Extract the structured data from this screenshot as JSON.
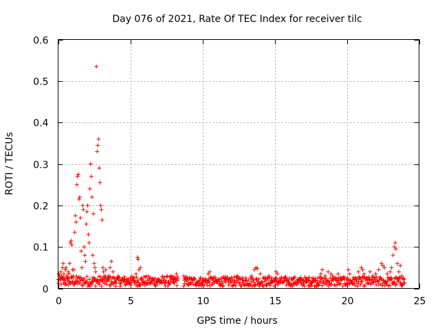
{
  "chart_data": {
    "type": "scatter",
    "title": "Day 076 of 2021, Rate Of TEC Index for receiver tilc",
    "xlabel": "GPS time / hours",
    "ylabel": "ROTI / TECUs",
    "xlim": [
      0,
      25
    ],
    "ylim": [
      0,
      0.6
    ],
    "xticks": [
      "0",
      "5",
      "10",
      "15",
      "20",
      "25"
    ],
    "yticks": [
      "0",
      "0.1",
      "0.2",
      "0.3",
      "0.4",
      "0.5",
      "0.6"
    ],
    "grid": true,
    "marker": "+",
    "color": "#ff0000",
    "series": [
      {
        "name": "",
        "points": [
          [
            0.05,
            0.035
          ],
          [
            0.1,
            0.03
          ],
          [
            0.15,
            0.025
          ],
          [
            0.2,
            0.04
          ],
          [
            0.25,
            0.03
          ],
          [
            0.3,
            0.05
          ],
          [
            0.35,
            0.06
          ],
          [
            0.4,
            0.035
          ],
          [
            0.45,
            0.02
          ],
          [
            0.5,
            0.045
          ],
          [
            0.55,
            0.05
          ],
          [
            0.6,
            0.03
          ],
          [
            0.65,
            0.02
          ],
          [
            0.7,
            0.04
          ],
          [
            0.75,
            0.035
          ],
          [
            0.8,
            0.06
          ],
          [
            0.85,
            0.11
          ],
          [
            0.9,
            0.115
          ],
          [
            0.95,
            0.105
          ],
          [
            1.0,
            0.045
          ],
          [
            1.05,
            0.03
          ],
          [
            1.1,
            0.045
          ],
          [
            1.15,
            0.135
          ],
          [
            1.2,
            0.175
          ],
          [
            1.25,
            0.16
          ],
          [
            1.3,
            0.25
          ],
          [
            1.35,
            0.27
          ],
          [
            1.4,
            0.275
          ],
          [
            1.45,
            0.215
          ],
          [
            1.5,
            0.22
          ],
          [
            1.55,
            0.17
          ],
          [
            1.6,
            0.09
          ],
          [
            1.65,
            0.05
          ],
          [
            1.7,
            0.2
          ],
          [
            1.75,
            0.19
          ],
          [
            1.8,
            0.1
          ],
          [
            1.85,
            0.08
          ],
          [
            1.9,
            0.065
          ],
          [
            1.95,
            0.155
          ],
          [
            2.0,
            0.185
          ],
          [
            2.05,
            0.2
          ],
          [
            2.1,
            0.13
          ],
          [
            2.15,
            0.11
          ],
          [
            2.2,
            0.24
          ],
          [
            2.25,
            0.3
          ],
          [
            2.3,
            0.27
          ],
          [
            2.35,
            0.22
          ],
          [
            2.4,
            0.08
          ],
          [
            2.45,
            0.18
          ],
          [
            2.5,
            0.06
          ],
          [
            2.55,
            0.05
          ],
          [
            2.6,
            0.04
          ],
          [
            2.65,
            0.535
          ],
          [
            2.7,
            0.33
          ],
          [
            2.75,
            0.345
          ],
          [
            2.8,
            0.36
          ],
          [
            2.85,
            0.29
          ],
          [
            2.9,
            0.255
          ],
          [
            2.95,
            0.2
          ],
          [
            3.0,
            0.19
          ],
          [
            3.05,
            0.165
          ],
          [
            3.1,
            0.05
          ],
          [
            3.15,
            0.04
          ],
          [
            3.2,
            0.03
          ],
          [
            3.3,
            0.045
          ],
          [
            3.4,
            0.025
          ],
          [
            3.5,
            0.03
          ],
          [
            3.6,
            0.05
          ],
          [
            3.7,
            0.065
          ],
          [
            3.8,
            0.04
          ],
          [
            3.9,
            0.025
          ],
          [
            4.0,
            0.02
          ],
          [
            4.2,
            0.025
          ],
          [
            4.4,
            0.02
          ],
          [
            4.6,
            0.015
          ],
          [
            4.8,
            0.02
          ],
          [
            5.0,
            0.025
          ],
          [
            5.2,
            0.02
          ],
          [
            5.4,
            0.035
          ],
          [
            5.5,
            0.075
          ],
          [
            5.55,
            0.07
          ],
          [
            5.6,
            0.045
          ],
          [
            5.7,
            0.05
          ],
          [
            5.8,
            0.02
          ],
          [
            6.0,
            0.015
          ],
          [
            6.2,
            0.02
          ],
          [
            6.4,
            0.015
          ],
          [
            6.6,
            0.02
          ],
          [
            6.8,
            0.015
          ],
          [
            7.0,
            0.02
          ],
          [
            7.2,
            0.015
          ],
          [
            7.4,
            0.02
          ],
          [
            7.6,
            0.015
          ],
          [
            7.8,
            0.02
          ],
          [
            8.0,
            0.015
          ],
          [
            8.1,
            0.025
          ],
          [
            8.2,
            0.035
          ],
          [
            8.3,
            0.02
          ],
          [
            8.7,
            0.03
          ],
          [
            8.8,
            0.025
          ],
          [
            9.0,
            0.02
          ],
          [
            9.2,
            0.015
          ],
          [
            9.4,
            0.02
          ],
          [
            9.6,
            0.015
          ],
          [
            9.8,
            0.02
          ],
          [
            10.0,
            0.015
          ],
          [
            10.2,
            0.02
          ],
          [
            10.4,
            0.035
          ],
          [
            10.5,
            0.04
          ],
          [
            10.6,
            0.025
          ],
          [
            10.8,
            0.02
          ],
          [
            11.0,
            0.015
          ],
          [
            11.2,
            0.02
          ],
          [
            11.4,
            0.025
          ],
          [
            11.6,
            0.015
          ],
          [
            11.8,
            0.02
          ],
          [
            12.0,
            0.025
          ],
          [
            12.2,
            0.02
          ],
          [
            12.4,
            0.03
          ],
          [
            12.6,
            0.025
          ],
          [
            12.8,
            0.02
          ],
          [
            13.0,
            0.025
          ],
          [
            13.2,
            0.02
          ],
          [
            13.4,
            0.03
          ],
          [
            13.6,
            0.045
          ],
          [
            13.7,
            0.05
          ],
          [
            13.8,
            0.048
          ],
          [
            14.0,
            0.035
          ],
          [
            14.2,
            0.025
          ],
          [
            14.4,
            0.02
          ],
          [
            14.6,
            0.03
          ],
          [
            14.8,
            0.025
          ],
          [
            15.0,
            0.02
          ],
          [
            15.1,
            0.04
          ],
          [
            15.2,
            0.035
          ],
          [
            15.4,
            0.02
          ],
          [
            15.6,
            0.015
          ],
          [
            15.8,
            0.02
          ],
          [
            16.0,
            0.015
          ],
          [
            16.2,
            0.02
          ],
          [
            16.4,
            0.015
          ],
          [
            16.6,
            0.02
          ],
          [
            16.8,
            0.015
          ],
          [
            17.0,
            0.02
          ],
          [
            17.2,
            0.015
          ],
          [
            17.4,
            0.02
          ],
          [
            17.6,
            0.025
          ],
          [
            17.8,
            0.02
          ],
          [
            18.0,
            0.025
          ],
          [
            18.2,
            0.035
          ],
          [
            18.3,
            0.045
          ],
          [
            18.5,
            0.03
          ],
          [
            18.7,
            0.04
          ],
          [
            18.9,
            0.035
          ],
          [
            19.0,
            0.03
          ],
          [
            19.2,
            0.025
          ],
          [
            19.4,
            0.035
          ],
          [
            19.6,
            0.02
          ],
          [
            19.8,
            0.025
          ],
          [
            20.0,
            0.02
          ],
          [
            20.1,
            0.045
          ],
          [
            20.2,
            0.035
          ],
          [
            20.4,
            0.02
          ],
          [
            20.6,
            0.025
          ],
          [
            20.8,
            0.04
          ],
          [
            21.0,
            0.05
          ],
          [
            21.1,
            0.045
          ],
          [
            21.2,
            0.035
          ],
          [
            21.4,
            0.025
          ],
          [
            21.6,
            0.04
          ],
          [
            21.8,
            0.03
          ],
          [
            22.0,
            0.035
          ],
          [
            22.2,
            0.045
          ],
          [
            22.4,
            0.06
          ],
          [
            22.5,
            0.055
          ],
          [
            22.6,
            0.05
          ],
          [
            22.8,
            0.035
          ],
          [
            23.0,
            0.04
          ],
          [
            23.1,
            0.05
          ],
          [
            23.2,
            0.08
          ],
          [
            23.3,
            0.1
          ],
          [
            23.35,
            0.11
          ],
          [
            23.4,
            0.095
          ],
          [
            23.5,
            0.06
          ],
          [
            23.6,
            0.04
          ],
          [
            23.7,
            0.055
          ],
          [
            23.8,
            0.03
          ],
          [
            23.9,
            0.025
          ]
        ]
      }
    ],
    "baseline_band": {
      "segments": [
        {
          "from": 0.0,
          "to": 8.3,
          "low": 0.005,
          "high": 0.03
        },
        {
          "from": 8.7,
          "to": 24.0,
          "low": 0.005,
          "high": 0.028
        }
      ]
    }
  }
}
